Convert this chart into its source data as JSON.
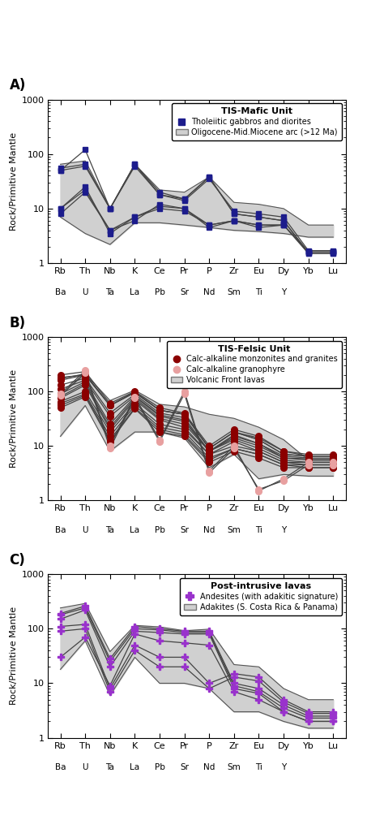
{
  "elements_top": [
    "Rb",
    "Th",
    "Nb",
    "K",
    "Ce",
    "Pr",
    "P",
    "Zr",
    "Eu",
    "Dy",
    "Yb",
    "Lu"
  ],
  "elements_bot": [
    "Ba",
    "U",
    "Ta",
    "La",
    "Pb",
    "Sr",
    "Nd",
    "Sm",
    "Ti",
    "Y",
    "",
    ""
  ],
  "ylabel": "Rock/Primitive Mantle",
  "panel_A": {
    "letter": "A)",
    "legend_title": "TIS-Mafic Unit",
    "legend_entry_1": "Tholeiitic gabbros and diorites",
    "legend_entry_2": "Oligocene-Mid.Miocene arc (>12 Ma)",
    "shade_min": [
      7,
      3.5,
      2.2,
      5.5,
      5.5,
      5,
      4.5,
      4,
      3.8,
      3.5,
      3,
      3
    ],
    "shade_max": [
      65,
      75,
      10,
      65,
      22,
      20,
      38,
      13,
      12,
      10,
      5,
      5
    ],
    "lines": [
      [
        50,
        120,
        10,
        65,
        20,
        15,
        38,
        8,
        7,
        6,
        1.5,
        1.5
      ],
      [
        50,
        60,
        10,
        60,
        18,
        14,
        35,
        9,
        8,
        7,
        1.7,
        1.7
      ],
      [
        55,
        65,
        10,
        65,
        18,
        15,
        38,
        8,
        7,
        6,
        1.6,
        1.6
      ],
      [
        8,
        20,
        4,
        6,
        12,
        10,
        5,
        6,
        5,
        5,
        1.5,
        1.5
      ],
      [
        10,
        25,
        3.5,
        7,
        10,
        9,
        5,
        6,
        4.5,
        5,
        1.6,
        1.6
      ],
      [
        10,
        22,
        4,
        7,
        11,
        10,
        4.5,
        6,
        5,
        5,
        1.6,
        1.6
      ]
    ],
    "marker_color": "#1c1c8c",
    "line_color": "#444444"
  },
  "panel_B": {
    "letter": "B)",
    "legend_title": "TIS-Felsic Unit",
    "legend_entry_1": "Calc-alkaline monzonites and granites",
    "legend_entry_2": "Calc-alkaline granophyre",
    "legend_entry_3": "Volcanic Front lavas",
    "shade_min": [
      15,
      55,
      8,
      18,
      18,
      14,
      4,
      7,
      2.5,
      3,
      2.8,
      2.8
    ],
    "shade_max": [
      85,
      210,
      68,
      105,
      58,
      52,
      38,
      32,
      22,
      13,
      5.5,
      5.5
    ],
    "lines_filled": [
      [
        200,
        230,
        60,
        100,
        50,
        40,
        10,
        20,
        15,
        8,
        7,
        7
      ],
      [
        180,
        200,
        55,
        95,
        45,
        38,
        9,
        18,
        13,
        7,
        6.5,
        6.5
      ],
      [
        170,
        210,
        55,
        98,
        45,
        38,
        9,
        18,
        14,
        8,
        6.5,
        6.5
      ],
      [
        160,
        200,
        55,
        95,
        45,
        38,
        9,
        18,
        13,
        7,
        6.5,
        6.5
      ],
      [
        130,
        175,
        40,
        88,
        40,
        33,
        8,
        16,
        11,
        6.5,
        6,
        6
      ],
      [
        110,
        160,
        35,
        82,
        37,
        30,
        8,
        15,
        11,
        6,
        5.8,
        5.8
      ],
      [
        90,
        150,
        25,
        80,
        35,
        28,
        8,
        14,
        10,
        6,
        5.5,
        5.5
      ],
      [
        80,
        140,
        22,
        75,
        32,
        25,
        8,
        13,
        9,
        5.5,
        5,
        5
      ],
      [
        75,
        130,
        20,
        70,
        30,
        22,
        7,
        12,
        8,
        5,
        5,
        5
      ],
      [
        65,
        100,
        18,
        60,
        25,
        20,
        7,
        10,
        8,
        5,
        4.5,
        4.5
      ],
      [
        60,
        90,
        15,
        55,
        22,
        18,
        6,
        9,
        7,
        4.5,
        4.5,
        4.5
      ],
      [
        55,
        85,
        13,
        50,
        20,
        16,
        5.5,
        9,
        7,
        4.5,
        4,
        4
      ],
      [
        50,
        80,
        12,
        48,
        18,
        15,
        5,
        8,
        6,
        4,
        4,
        4
      ]
    ],
    "lines_open": [
      [
        90,
        240,
        10,
        80,
        13,
        100,
        3.5,
        10,
        1.5,
        2.5,
        5,
        5
      ],
      [
        85,
        220,
        9,
        75,
        12,
        90,
        3.2,
        9,
        1.6,
        2.3,
        4.5,
        4.5
      ]
    ],
    "marker_color_filled": "#8b0000",
    "marker_color_open": "#e8a0a0",
    "line_color": "#444444"
  },
  "panel_C": {
    "letter": "C)",
    "legend_title": "Post-intrusive lavas",
    "legend_entry_1": "Andesites (with adakitic signature)",
    "legend_entry_2": "Adakites (S. Costa Rica & Panama)",
    "shade_min": [
      18,
      60,
      6,
      30,
      10,
      10,
      8,
      3,
      3,
      2,
      1.5,
      1.5
    ],
    "shade_max": [
      240,
      290,
      38,
      115,
      108,
      92,
      98,
      22,
      20,
      8,
      5,
      5
    ],
    "lines": [
      [
        190,
        260,
        28,
        110,
        100,
        90,
        90,
        10,
        8,
        4,
        2.5,
        2.5
      ],
      [
        180,
        240,
        25,
        100,
        95,
        85,
        85,
        9,
        7,
        3.5,
        2.3,
        2.3
      ],
      [
        150,
        220,
        20,
        90,
        85,
        80,
        80,
        8,
        6.5,
        3,
        2,
        2
      ],
      [
        110,
        120,
        8,
        50,
        30,
        30,
        10,
        15,
        13,
        5,
        3,
        3
      ],
      [
        90,
        100,
        7,
        40,
        20,
        20,
        8,
        13,
        11,
        4.5,
        2.8,
        2.8
      ],
      [
        30,
        70,
        9,
        80,
        60,
        55,
        50,
        7,
        5,
        3,
        2,
        2
      ]
    ],
    "marker_color": "#9932cc",
    "line_color": "#444444"
  },
  "ylim": [
    1,
    1000
  ],
  "background_color": "#ffffff",
  "shade_color": "#d0d0d0",
  "shade_edge_color": "#555555"
}
